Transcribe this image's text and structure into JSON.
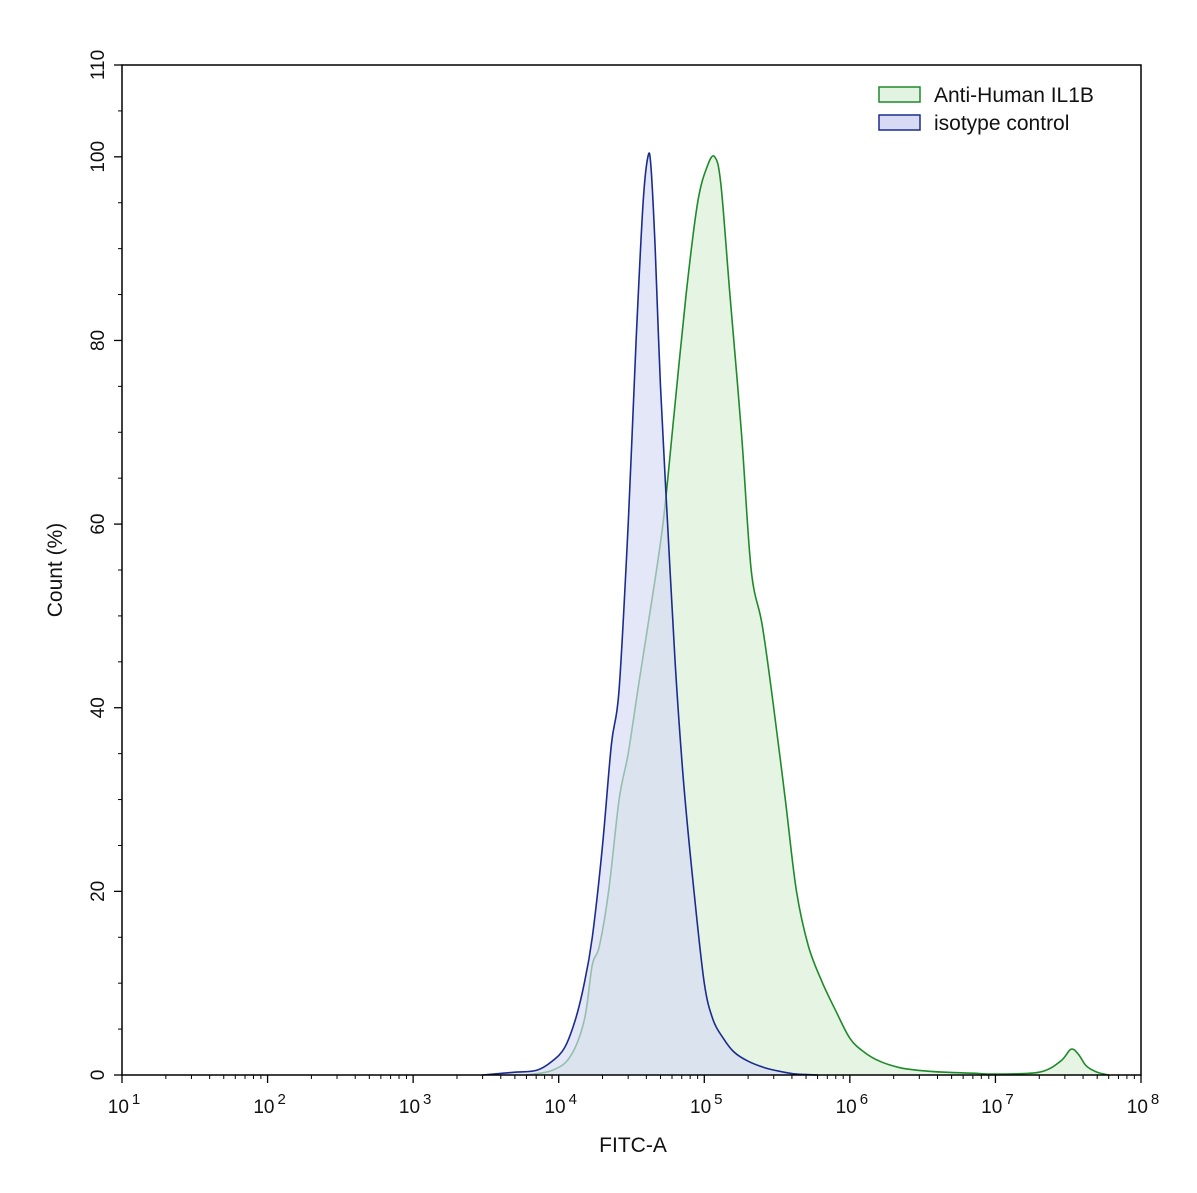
{
  "chart_data": {
    "type": "area",
    "title": "",
    "xlabel": "FITC-A",
    "ylabel": "Count  (%)",
    "x_scale": "log",
    "xlim": [
      10,
      100000000
    ],
    "ylim": [
      0,
      110
    ],
    "x_ticks": [
      {
        "value": 10,
        "base": "10",
        "exp": "1"
      },
      {
        "value": 100,
        "base": "10",
        "exp": "2"
      },
      {
        "value": 1000,
        "base": "10",
        "exp": "3"
      },
      {
        "value": 10000,
        "base": "10",
        "exp": "4"
      },
      {
        "value": 100000,
        "base": "10",
        "exp": "5"
      },
      {
        "value": 1000000,
        "base": "10",
        "exp": "6"
      },
      {
        "value": 10000000,
        "base": "10",
        "exp": "7"
      },
      {
        "value": 100000000,
        "base": "10",
        "exp": "8"
      }
    ],
    "y_ticks": [
      "0",
      "20",
      "40",
      "60",
      "80",
      "100",
      "110"
    ],
    "grid": false,
    "legend_position": "top-right",
    "series": [
      {
        "name": "Anti-Human IL1B",
        "line_color": "#1f8a2a",
        "fill_color": "#e3f3e1",
        "x": [
          6000,
          9000,
          12000,
          15000,
          17000,
          19000,
          22000,
          26000,
          30000,
          35000,
          42000,
          52000,
          62000,
          75000,
          90000,
          105000,
          118000,
          130000,
          150000,
          180000,
          210000,
          250000,
          300000,
          360000,
          430000,
          520000,
          650000,
          800000,
          1000000,
          1250000,
          1600000,
          2200000,
          3000000,
          4500000,
          7000000,
          10000000,
          20000000,
          28000000,
          33000000,
          37000000,
          42000000,
          50000000,
          60000000
        ],
        "y": [
          0,
          0.5,
          2,
          6,
          12,
          14,
          20,
          30,
          35,
          42,
          50,
          60,
          72,
          85,
          95,
          99,
          100,
          97,
          85,
          70,
          55,
          49,
          40,
          30,
          20,
          14,
          10,
          7,
          4,
          2.5,
          1.5,
          0.8,
          0.5,
          0.3,
          0.2,
          0.1,
          0.3,
          1.5,
          2.8,
          2.3,
          1,
          0.3,
          0
        ]
      },
      {
        "name": "isotype control",
        "line_color": "#1b2c8f",
        "fill_color": "#d6daf2",
        "x": [
          3000,
          5000,
          7000,
          9000,
          11000,
          13000,
          15000,
          17000,
          20000,
          23000,
          26000,
          30000,
          34000,
          38000,
          41000,
          43000,
          46000,
          50000,
          56000,
          63000,
          72000,
          85000,
          100000,
          115000,
          135000,
          160000,
          200000,
          260000,
          330000,
          430000,
          600000
        ],
        "y": [
          0,
          0.3,
          0.5,
          1.5,
          3,
          6,
          10,
          15,
          25,
          36,
          42,
          60,
          80,
          95,
          100,
          99,
          90,
          75,
          60,
          45,
          32,
          20,
          10,
          6,
          4,
          2.5,
          1.5,
          0.8,
          0.4,
          0.1,
          0
        ]
      }
    ]
  }
}
